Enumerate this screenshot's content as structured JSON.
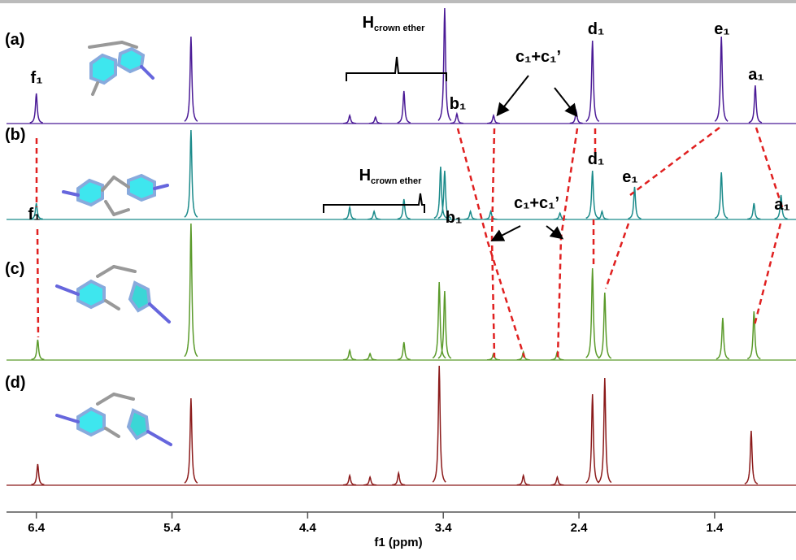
{
  "chart_data": {
    "type": "nmr-stack",
    "x_label": "f1 (ppm)",
    "xlim": [
      6.62,
      0.8
    ],
    "xticks": [
      6.4,
      5.4,
      4.4,
      3.4,
      2.4,
      1.4
    ],
    "ylim": [
      0,
      170
    ],
    "spectra": [
      {
        "name": "(a)",
        "color": "#4a1a96",
        "x": [
          6.4,
          5.26,
          4.09,
          3.9,
          3.69,
          3.39,
          3.3,
          3.03,
          2.42,
          2.3,
          1.35,
          1.1
        ],
        "values": [
          37,
          107,
          10,
          8,
          40,
          142,
          12,
          10,
          15,
          102,
          107,
          47
        ],
        "annotations": [
          {
            "text": "f₁"
          },
          {
            "text": "H",
            "sub": "crown ether"
          },
          {
            "text": "b₁"
          },
          {
            "text": "c₁+c₁’"
          },
          {
            "text": "d₁"
          },
          {
            "text": "e₁"
          },
          {
            "text": "a₁"
          }
        ]
      },
      {
        "name": "(b)",
        "color": "#1a8a8a",
        "x": [
          6.4,
          5.26,
          4.09,
          3.91,
          3.69,
          3.42,
          3.39,
          3.2,
          3.05,
          2.54,
          2.3,
          2.23,
          1.99,
          1.35,
          1.11,
          0.91
        ],
        "values": [
          20,
          110,
          15,
          10,
          25,
          65,
          60,
          10,
          10,
          8,
          60,
          10,
          40,
          58,
          20,
          30
        ],
        "annotations": [
          {
            "text": "f₁"
          },
          {
            "text": "H",
            "sub": "crown ether"
          },
          {
            "text": "b₁"
          },
          {
            "text": "c₁+c₁’"
          },
          {
            "text": "d₁"
          },
          {
            "text": "e₁"
          },
          {
            "text": "a₁"
          }
        ]
      },
      {
        "name": "(c)",
        "color": "#5a9a2a",
        "x": [
          6.39,
          5.26,
          4.09,
          3.94,
          3.69,
          3.43,
          3.39,
          3.03,
          2.81,
          2.56,
          2.3,
          2.21,
          1.34,
          1.11
        ],
        "values": [
          25,
          168,
          12,
          8,
          22,
          96,
          85,
          8,
          10,
          10,
          113,
          83,
          52,
          60
        ],
        "annotations": []
      },
      {
        "name": "(d)",
        "color": "#8b1a1a",
        "x": [
          6.39,
          5.26,
          4.09,
          3.94,
          3.73,
          3.43,
          2.81,
          2.56,
          2.3,
          2.21,
          1.13
        ],
        "values": [
          26,
          107,
          12,
          10,
          15,
          147,
          12,
          10,
          112,
          132,
          67
        ],
        "annotations": []
      }
    ]
  }
}
